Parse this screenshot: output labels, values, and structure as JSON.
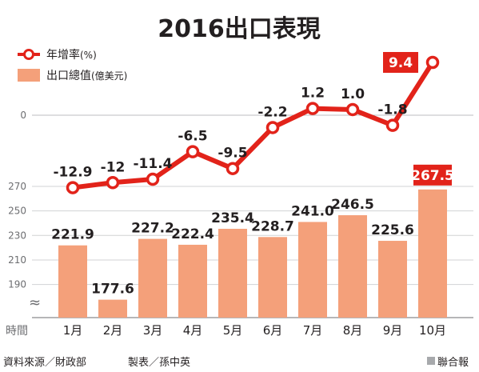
{
  "chart_data": {
    "type": "bar+line",
    "title": "2016出口表現",
    "categories": [
      "1月",
      "2月",
      "3月",
      "4月",
      "5月",
      "6月",
      "7月",
      "8月",
      "9月",
      "10月"
    ],
    "series": [
      {
        "name": "年增率(%)",
        "type": "line",
        "values": [
          -12.9,
          -12,
          -11.4,
          -6.5,
          -9.5,
          -2.2,
          1.2,
          1.0,
          -1.8,
          9.4
        ],
        "labels": [
          "-12.9",
          "-12",
          "-11.4",
          "-6.5",
          "-9.5",
          "-2.2",
          "1.2",
          "1.0",
          "-1.8",
          "9.4"
        ],
        "color": "#e2231a",
        "y_tick_labels": [
          "0"
        ]
      },
      {
        "name": "出口總值(億美元)",
        "type": "bar",
        "values": [
          221.9,
          177.6,
          227.2,
          222.4,
          235.4,
          228.7,
          241.0,
          246.5,
          225.6,
          267.5
        ],
        "labels": [
          "221.9",
          "177.6",
          "227.2",
          "222.4",
          "235.4",
          "228.7",
          "241.0",
          "246.5",
          "225.6",
          "267.5"
        ],
        "color": "#f4a07a",
        "y_tick_labels": [
          "270",
          "250",
          "230",
          "210",
          "190"
        ],
        "axis_break": true
      }
    ],
    "xlabel": "時間",
    "legend": {
      "position": "top-left",
      "line_label": "年增率",
      "line_unit": "(%)",
      "bar_label": "出口總值",
      "bar_unit": "(億美元)"
    },
    "highlight": {
      "index": 9,
      "color": "#e2231a"
    },
    "grid": true,
    "axis_break_symbol": "≈"
  },
  "footer": {
    "source": "資料來源／財政部",
    "maker": "製表／孫中英",
    "publisher": "聯合報"
  }
}
